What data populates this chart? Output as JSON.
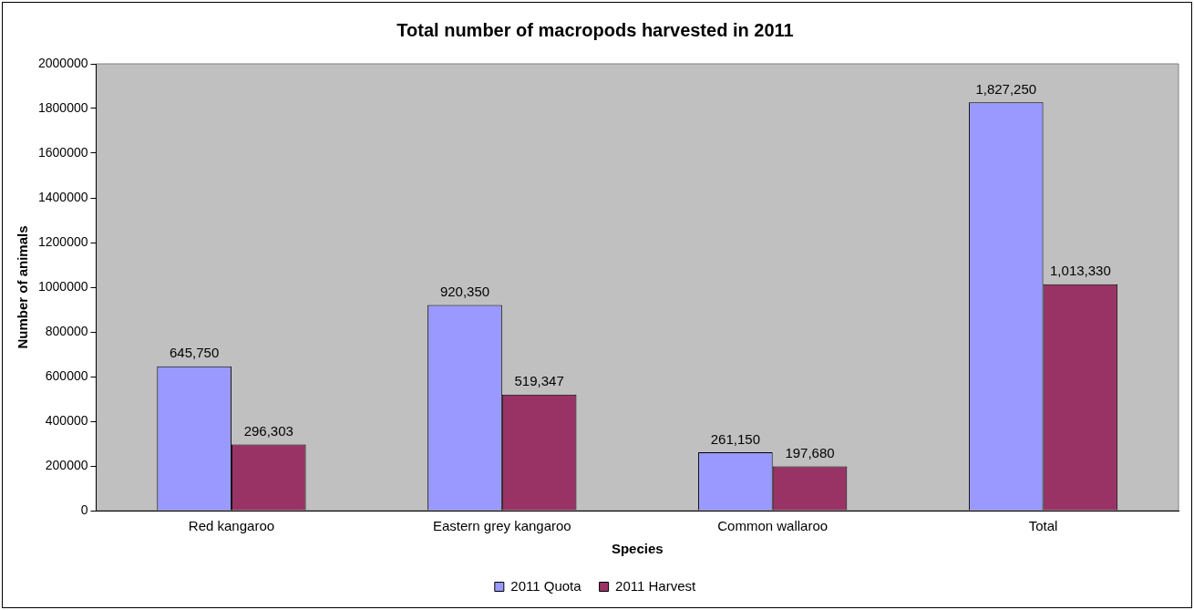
{
  "chart_data": {
    "type": "bar",
    "title": "Total number of macropods harvested in 2011",
    "xlabel": "Species",
    "ylabel": "Number of animals",
    "categories": [
      "Red kangaroo",
      "Eastern grey kangaroo",
      "Common wallaroo",
      "Total"
    ],
    "series": [
      {
        "name": "2011 Quota",
        "color": "#9999ff",
        "values": [
          645750,
          920350,
          261150,
          1827250
        ],
        "value_labels": [
          "645,750",
          "920,350",
          "261,150",
          "1,827,250"
        ]
      },
      {
        "name": "2011 Harvest",
        "color": "#993366",
        "values": [
          296303,
          519347,
          197680,
          1013330
        ],
        "value_labels": [
          "296,303",
          "519,347",
          "197,680",
          "1,013,330"
        ]
      }
    ],
    "ylim": [
      0,
      2000000
    ],
    "yticks": [
      0,
      200000,
      400000,
      600000,
      800000,
      1000000,
      1200000,
      1400000,
      1600000,
      1800000,
      2000000
    ],
    "grid": false,
    "legend": "bottom"
  }
}
